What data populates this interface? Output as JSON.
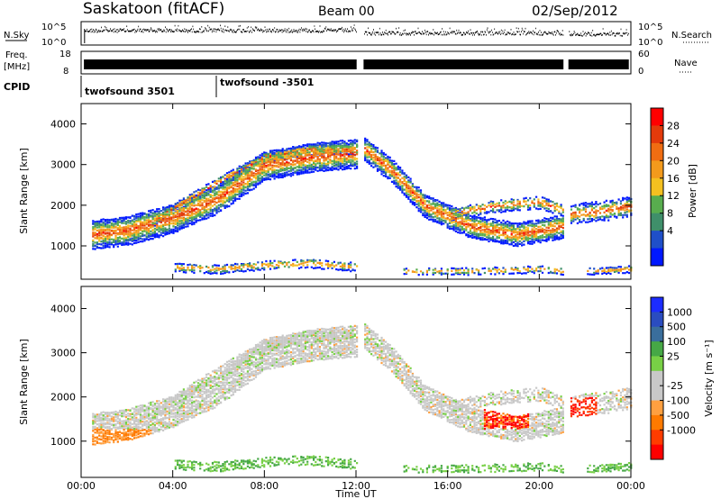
{
  "header": {
    "title": "Saskatoon (fitACF)",
    "beam": "Beam 00",
    "date": "02/Sep/2012"
  },
  "panels": {
    "nsky_label": "N.Sky",
    "nsearch_label": "N.Search",
    "nsky_ticks": [
      "10^5",
      "10^0"
    ],
    "freq_label_1": "Freq.",
    "freq_label_2": "[MHz]",
    "freq_ticks": [
      "18",
      "8"
    ],
    "nave_label": "Nave",
    "nave_ticks": [
      "60",
      "0"
    ],
    "cpid_label": "CPID",
    "cpid_1": "twofsound 3501",
    "cpid_2": "twofsound -3501"
  },
  "colors": {
    "power": [
      "#0018ff",
      "#1f4fc8",
      "#3f8f6a",
      "#58ad4e",
      "#f4c020",
      "#f39a1c",
      "#f06d12",
      "#e33a0b",
      "#ff0000"
    ],
    "velocity": [
      "#ff0000",
      "#ff3c00",
      "#ff7a00",
      "#ffa040",
      "#c8c8c8",
      "#c8c8c8",
      "#78d046",
      "#46a846",
      "#3a6e9c",
      "#2a4cc0",
      "#1c2cff"
    ]
  },
  "chart_data": [
    {
      "type": "heatmap",
      "name_label": "Power [dB]",
      "ylabel": "Slant Range [km]",
      "xlabel": "Time UT",
      "xlim": [
        0,
        24
      ],
      "ylim": [
        180,
        4500
      ],
      "y_ticks": [
        "1000",
        "2000",
        "3000",
        "4000"
      ],
      "colorbar_ticks": [
        "4",
        "8",
        "12",
        "16",
        "20",
        "24",
        "28"
      ]
    },
    {
      "type": "heatmap",
      "name_label": "Velocity [m s⁻¹]",
      "ylabel": "Slant Range [km]",
      "xlabel": "Time UT",
      "xlim": [
        0,
        24
      ],
      "ylim": [
        180,
        4500
      ],
      "y_ticks": [
        "1000",
        "2000",
        "3000",
        "4000"
      ],
      "colorbar_ticks": [
        "1000",
        "500",
        "100",
        "25",
        "-25",
        "-100",
        "-500",
        "-1000"
      ]
    }
  ],
  "time_axis": {
    "ticks": [
      "00:00",
      "04:00",
      "08:00",
      "12:00",
      "16:00",
      "20:00",
      "00:00"
    ],
    "label": "Time UT"
  }
}
